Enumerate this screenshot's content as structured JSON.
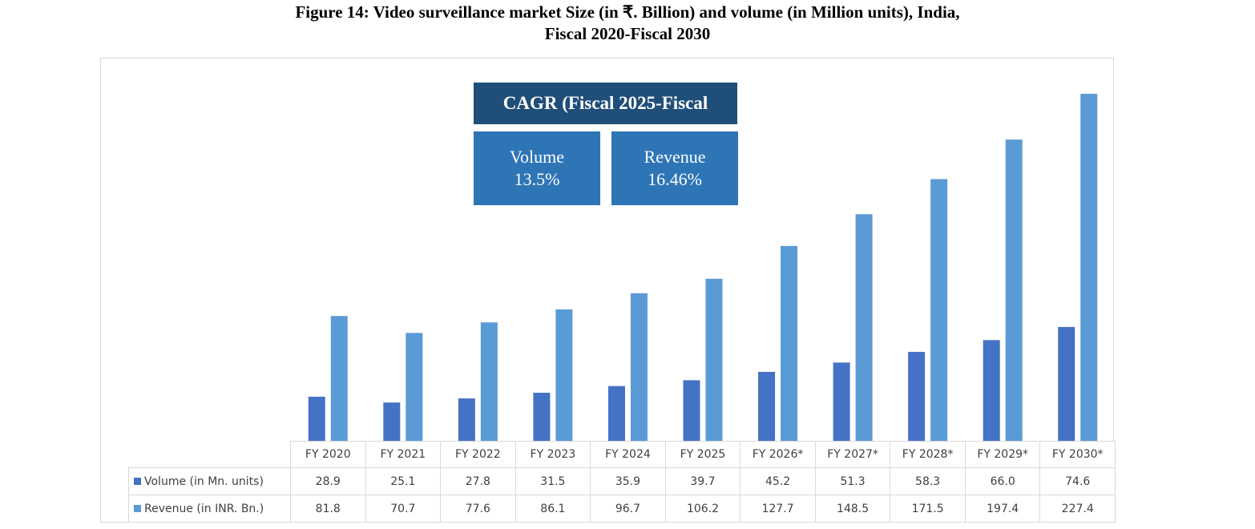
{
  "title_line1": "Figure 14: Video surveillance market Size (in ₹. Billion) and volume (in Million units), India,",
  "title_line2": "Fiscal 2020-Fiscal 2030",
  "cagr": {
    "header": "CAGR (Fiscal 2025-Fiscal",
    "volume_label": "Volume",
    "volume_value": "13.5%",
    "revenue_label": "Revenue",
    "revenue_value": "16.46%"
  },
  "colors": {
    "volume": "#4472C4",
    "revenue": "#5B9BD5",
    "cagr_header": "#1F4E79",
    "cagr_box": "#2E75B6"
  },
  "chart_data": {
    "type": "bar",
    "title": "Figure 14: Video surveillance market Size (in ₹. Billion) and volume (in Million units), India, Fiscal 2020-Fiscal 2030",
    "categories": [
      "FY 2020",
      "FY 2021",
      "FY 2022",
      "FY 2023",
      "FY 2024",
      "FY 2025",
      "FY 2026*",
      "FY 2027*",
      "FY 2028*",
      "FY 2029*",
      "FY 2030*"
    ],
    "series": [
      {
        "name": "Volume (in Mn. units)",
        "values": [
          "28.9",
          "25.1",
          "27.8",
          "31.5",
          "35.9",
          "39.7",
          "45.2",
          "51.3",
          "58.3",
          "66.0",
          "74.6"
        ]
      },
      {
        "name": "Revenue (in INR. Bn.)",
        "values": [
          "81.8",
          "70.7",
          "77.6",
          "86.1",
          "96.7",
          "106.2",
          "127.7",
          "148.5",
          "171.5",
          "197.4",
          "227.4"
        ]
      }
    ],
    "ylim": [
      0,
      240
    ],
    "grid": false,
    "legend": "data-table-bottom"
  }
}
